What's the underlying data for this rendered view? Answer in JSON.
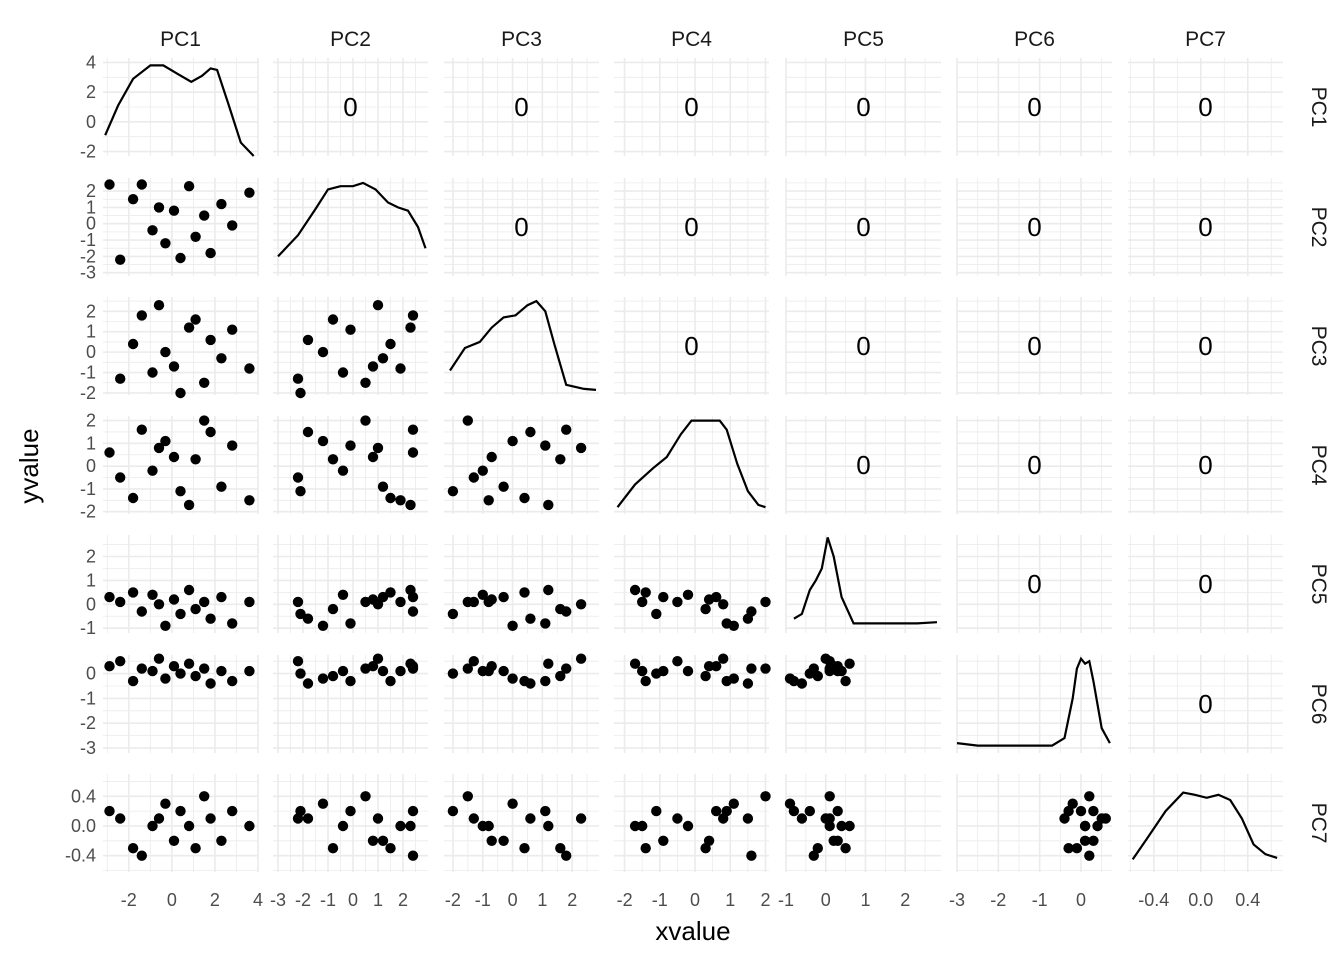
{
  "chart_data": {
    "type": "scatter",
    "title": "",
    "xlabel": "xvalue",
    "ylabel": "yvalue",
    "variables": [
      "PC1",
      "PC2",
      "PC3",
      "PC4",
      "PC5",
      "PC6",
      "PC7"
    ],
    "panel_layout": "pairs matrix: density curves on diagonal, scatter plots below diagonal, correlation value above diagonal",
    "correlation_label": "0",
    "x_ranges": [
      [
        -3.2,
        4.0
      ],
      [
        -3.2,
        3.0
      ],
      [
        -2.3,
        2.9
      ],
      [
        -2.3,
        2.1
      ],
      [
        -1.0,
        2.9
      ],
      [
        -3.0,
        0.75
      ],
      [
        -0.62,
        0.7
      ]
    ],
    "y_ranges": [
      [
        -2.3,
        4.3
      ],
      [
        -3.2,
        2.8
      ],
      [
        -2.1,
        2.7
      ],
      [
        -2.1,
        2.2
      ],
      [
        -1.2,
        2.9
      ],
      [
        -3.2,
        0.75
      ],
      [
        -0.62,
        0.7
      ]
    ],
    "x_ticks": [
      [
        -2,
        0,
        2,
        4
      ],
      [
        -3,
        -2,
        -1,
        0,
        1,
        2
      ],
      [
        -2,
        -1,
        0,
        1,
        2
      ],
      [
        -2,
        -1,
        0,
        1,
        2
      ],
      [
        -1,
        0,
        1,
        2
      ],
      [
        -3,
        -2,
        -1,
        0
      ],
      [
        -0.4,
        0.0,
        0.4
      ]
    ],
    "x_tick_labels": [
      [
        "-2",
        "0",
        "2",
        "4"
      ],
      [
        "-3",
        "-2",
        "-1",
        "0",
        "1",
        "2"
      ],
      [
        "-2",
        "-1",
        "0",
        "1",
        "2"
      ],
      [
        "-2",
        "-1",
        "0",
        "1",
        "2"
      ],
      [
        "-1",
        "0",
        "1",
        "2"
      ],
      [
        "-3",
        "-2",
        "-1",
        "0"
      ],
      [
        "-0.4",
        "0.0",
        "0.4"
      ]
    ],
    "y_ticks": [
      [
        -2,
        0,
        2,
        4
      ],
      [
        -3,
        -2,
        -1,
        0,
        1,
        2
      ],
      [
        -2,
        -1,
        0,
        1,
        2
      ],
      [
        -2,
        -1,
        0,
        1,
        2
      ],
      [
        -1,
        0,
        1,
        2
      ],
      [
        -3,
        -2,
        -1,
        0
      ],
      [
        -0.4,
        0.0,
        0.4
      ]
    ],
    "y_tick_labels": [
      [
        "-2",
        "0",
        "2",
        "4"
      ],
      [
        "-3",
        "-2",
        "-1",
        "0",
        "1",
        "2"
      ],
      [
        "-2",
        "-1",
        "0",
        "1",
        "2"
      ],
      [
        "-2",
        "-1",
        "0",
        "1",
        "2"
      ],
      [
        "-1",
        "0",
        "1",
        "2"
      ],
      [
        "-3",
        "-2",
        "-1",
        "0"
      ],
      [
        "-0.4",
        "0.0",
        "0.4"
      ]
    ],
    "density_curves": [
      [
        [
          -3.1,
          -0.9
        ],
        [
          -2.5,
          1.1
        ],
        [
          -1.8,
          2.9
        ],
        [
          -1.0,
          3.8
        ],
        [
          -0.4,
          3.8
        ],
        [
          0.3,
          3.2
        ],
        [
          0.9,
          2.7
        ],
        [
          1.4,
          3.1
        ],
        [
          1.8,
          3.6
        ],
        [
          2.1,
          3.5
        ],
        [
          2.6,
          1.3
        ],
        [
          3.2,
          -1.4
        ],
        [
          3.8,
          -2.3
        ]
      ],
      [
        [
          -3.0,
          -2.0
        ],
        [
          -2.2,
          -0.7
        ],
        [
          -1.5,
          0.9
        ],
        [
          -1.0,
          2.1
        ],
        [
          -0.5,
          2.3
        ],
        [
          0.0,
          2.3
        ],
        [
          0.4,
          2.5
        ],
        [
          0.9,
          2.1
        ],
        [
          1.4,
          1.3
        ],
        [
          1.8,
          1.0
        ],
        [
          2.2,
          0.8
        ],
        [
          2.6,
          -0.2
        ],
        [
          2.9,
          -1.5
        ]
      ],
      [
        [
          -2.1,
          -0.9
        ],
        [
          -1.6,
          0.2
        ],
        [
          -1.1,
          0.5
        ],
        [
          -0.7,
          1.2
        ],
        [
          -0.3,
          1.7
        ],
        [
          0.1,
          1.8
        ],
        [
          0.5,
          2.3
        ],
        [
          0.8,
          2.5
        ],
        [
          1.1,
          2.0
        ],
        [
          1.4,
          0.4
        ],
        [
          1.8,
          -1.6
        ],
        [
          2.4,
          -1.8
        ],
        [
          2.8,
          -1.85
        ]
      ],
      [
        [
          -2.2,
          -1.8
        ],
        [
          -1.7,
          -0.8
        ],
        [
          -1.2,
          -0.1
        ],
        [
          -0.8,
          0.4
        ],
        [
          -0.4,
          1.4
        ],
        [
          -0.1,
          2.0
        ],
        [
          0.3,
          2.0
        ],
        [
          0.7,
          2.0
        ],
        [
          0.9,
          1.6
        ],
        [
          1.2,
          0.1
        ],
        [
          1.5,
          -1.1
        ],
        [
          1.8,
          -1.7
        ],
        [
          2.0,
          -1.8
        ]
      ],
      [
        [
          -0.8,
          -0.6
        ],
        [
          -0.6,
          -0.4
        ],
        [
          -0.4,
          0.6
        ],
        [
          -0.25,
          1.0
        ],
        [
          -0.1,
          1.5
        ],
        [
          0.05,
          2.8
        ],
        [
          0.2,
          2.0
        ],
        [
          0.4,
          0.3
        ],
        [
          0.7,
          -0.8
        ],
        [
          1.5,
          -0.8
        ],
        [
          2.3,
          -0.8
        ],
        [
          2.8,
          -0.75
        ]
      ],
      [
        [
          -3.0,
          -2.8
        ],
        [
          -2.5,
          -2.9
        ],
        [
          -1.5,
          -2.9
        ],
        [
          -0.7,
          -2.9
        ],
        [
          -0.4,
          -2.6
        ],
        [
          -0.2,
          -1.0
        ],
        [
          -0.1,
          0.2
        ],
        [
          0.0,
          0.6
        ],
        [
          0.1,
          0.4
        ],
        [
          0.2,
          0.5
        ],
        [
          0.3,
          -0.3
        ],
        [
          0.5,
          -2.2
        ],
        [
          0.7,
          -2.8
        ]
      ],
      [
        [
          -0.58,
          -0.45
        ],
        [
          -0.45,
          -0.15
        ],
        [
          -0.3,
          0.2
        ],
        [
          -0.15,
          0.45
        ],
        [
          -0.05,
          0.42
        ],
        [
          0.05,
          0.38
        ],
        [
          0.15,
          0.42
        ],
        [
          0.25,
          0.35
        ],
        [
          0.35,
          0.1
        ],
        [
          0.45,
          -0.25
        ],
        [
          0.55,
          -0.38
        ],
        [
          0.65,
          -0.43
        ]
      ]
    ],
    "scatter_samples": [
      [
        -2.9,
        2.4,
        -2.7,
        0.6,
        0.3,
        0.3,
        0.2,
        0.1
      ],
      [
        -2.4,
        -2.2,
        -1.3,
        -0.5,
        0.1,
        0.5,
        0.1,
        0.0
      ],
      [
        -1.8,
        1.5,
        0.4,
        -1.4,
        0.5,
        -0.3,
        -0.3,
        0.3
      ],
      [
        -1.4,
        2.4,
        1.8,
        1.6,
        -0.3,
        0.2,
        -0.4,
        -0.4
      ],
      [
        -0.9,
        -0.4,
        -1.0,
        -0.2,
        0.4,
        0.1,
        0.0,
        0.2
      ],
      [
        -0.6,
        1.0,
        2.3,
        0.8,
        0.0,
        0.6,
        0.1,
        -0.2
      ],
      [
        -0.3,
        -1.2,
        0.0,
        1.1,
        -0.9,
        -0.2,
        0.3,
        0.4
      ],
      [
        0.1,
        0.8,
        -0.7,
        0.4,
        0.2,
        0.3,
        -0.2,
        -0.1
      ],
      [
        0.4,
        -2.1,
        -2.0,
        -1.1,
        -0.4,
        0.0,
        0.2,
        -0.3
      ],
      [
        0.8,
        2.3,
        1.2,
        -1.7,
        0.6,
        0.4,
        0.0,
        0.5
      ],
      [
        1.1,
        -0.8,
        1.6,
        0.3,
        -0.2,
        -0.1,
        -0.3,
        0.3
      ],
      [
        1.5,
        0.5,
        -1.5,
        2.0,
        0.1,
        0.2,
        0.4,
        -0.2
      ],
      [
        1.8,
        -1.8,
        0.6,
        1.5,
        -0.6,
        -0.4,
        0.1,
        0.1
      ],
      [
        2.3,
        1.2,
        -0.3,
        -0.9,
        0.3,
        0.1,
        -0.2,
        0.0
      ],
      [
        2.8,
        -0.1,
        1.1,
        0.9,
        -0.8,
        -0.3,
        0.2,
        -0.4
      ],
      [
        3.6,
        1.9,
        -0.8,
        -1.5,
        0.1,
        0.1,
        0.0,
        0.2
      ]
    ]
  }
}
